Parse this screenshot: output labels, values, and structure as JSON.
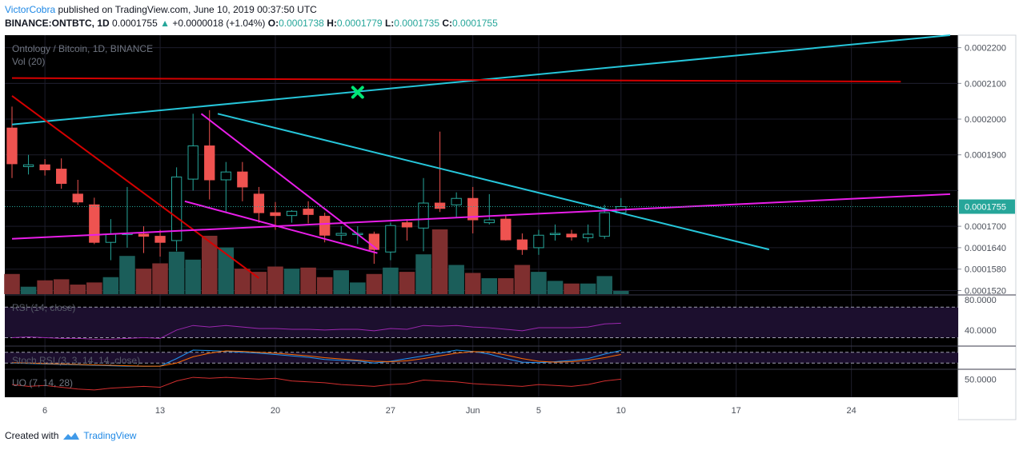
{
  "header": {
    "author": "VictorCobra",
    "published_text": "published on TradingView.com, June 10, 2019 00:37:50 UTC",
    "symbol": "BINANCE:ONTBTC, 1D",
    "last": "0.0001755",
    "change_arrow": "▲",
    "change": "+0.0000018 (+1.04%)",
    "open_label": "O:",
    "open": "0.0001738",
    "high_label": "H:",
    "high": "0.0001779",
    "low_label": "L:",
    "low": "0.0001735",
    "close_label": "C:",
    "close": "0.0001755"
  },
  "footer": {
    "created_with": "Created with",
    "brand": "TradingView",
    "logo_icon": "tradingview-cloud-icon"
  },
  "colors": {
    "background": "#000000",
    "up": "#26a69a",
    "down": "#ef5350",
    "up_volume": "#1b5e5a",
    "down_volume": "#7f2f2f",
    "trend_cyan": "#26c6da",
    "trend_red": "#d50000",
    "trend_magenta": "#e91ee9",
    "marker_green": "#00e676",
    "price_label_bg": "#26a69a",
    "rsi_line": "#9c27b0",
    "stoch_k": "#2196f3",
    "stoch_d": "#ff6d00",
    "uo_line": "#d32f2f"
  },
  "chart_data": {
    "type": "candlestick",
    "title": "Ontology / Bitcoin, 1D, BINANCE",
    "volume_label": "Vol (20)",
    "x_tick_labels": [
      "6",
      "13",
      "20",
      "27",
      "Jun",
      "5",
      "10",
      "17",
      "24"
    ],
    "x_tick_days": [
      2,
      9,
      16,
      23,
      28,
      32,
      37,
      44,
      51
    ],
    "x_range_days": [
      0,
      57
    ],
    "y_range": [
      0.000151,
      0.0002235
    ],
    "y_tick_values": [
      0.000152,
      0.000158,
      0.000164,
      0.00017,
      0.00019,
      0.0002,
      0.00021,
      0.00022
    ],
    "y_tick_labels": [
      "0.0001520",
      "0.0001580",
      "0.0001640",
      "0.0001700",
      "0.0001900",
      "0.0002000",
      "0.0002100",
      "0.0002200"
    ],
    "last_price_label": "0.0001755",
    "candles": [
      {
        "d": 0,
        "o": 0.0001975,
        "h": 0.0002035,
        "l": 0.0001835,
        "c": 0.0001875,
        "v": 0.38
      },
      {
        "d": 1,
        "o": 0.0001867,
        "h": 0.00019,
        "l": 0.0001845,
        "c": 0.0001872,
        "v": 0.14
      },
      {
        "d": 2,
        "o": 0.0001872,
        "h": 0.0001888,
        "l": 0.0001842,
        "c": 0.0001858,
        "v": 0.26
      },
      {
        "d": 3,
        "o": 0.000186,
        "h": 0.000189,
        "l": 0.0001805,
        "c": 0.000182,
        "v": 0.28
      },
      {
        "d": 4,
        "o": 0.000179,
        "h": 0.000183,
        "l": 0.000176,
        "c": 0.0001768,
        "v": 0.18
      },
      {
        "d": 5,
        "o": 0.000176,
        "h": 0.000178,
        "l": 0.000165,
        "c": 0.0001655,
        "v": 0.22
      },
      {
        "d": 6,
        "o": 0.0001655,
        "h": 0.000172,
        "l": 0.0001605,
        "c": 0.0001678,
        "v": 0.32
      },
      {
        "d": 7,
        "o": 0.0001678,
        "h": 0.000181,
        "l": 0.000164,
        "c": 0.000168,
        "v": 0.72
      },
      {
        "d": 8,
        "o": 0.0001678,
        "h": 0.00017,
        "l": 0.0001625,
        "c": 0.0001672,
        "v": 0.48
      },
      {
        "d": 9,
        "o": 0.0001672,
        "h": 0.000169,
        "l": 0.0001615,
        "c": 0.0001655,
        "v": 0.58
      },
      {
        "d": 10,
        "o": 0.000166,
        "h": 0.0001865,
        "l": 0.000163,
        "c": 0.0001838,
        "v": 0.8
      },
      {
        "d": 11,
        "o": 0.0001832,
        "h": 0.0002015,
        "l": 0.00018,
        "c": 0.0001925,
        "v": 0.65
      },
      {
        "d": 12,
        "o": 0.0001925,
        "h": 0.0002025,
        "l": 0.0001775,
        "c": 0.000183,
        "v": 1.1
      },
      {
        "d": 13,
        "o": 0.000183,
        "h": 0.000188,
        "l": 0.000174,
        "c": 0.0001852,
        "v": 0.88
      },
      {
        "d": 14,
        "o": 0.0001852,
        "h": 0.000188,
        "l": 0.000177,
        "c": 0.000181,
        "v": 0.48
      },
      {
        "d": 15,
        "o": 0.000179,
        "h": 0.000181,
        "l": 0.000171,
        "c": 0.0001738,
        "v": 0.42
      },
      {
        "d": 16,
        "o": 0.0001738,
        "h": 0.0001768,
        "l": 0.000169,
        "c": 0.000173,
        "v": 0.52
      },
      {
        "d": 17,
        "o": 0.000173,
        "h": 0.0001745,
        "l": 0.000171,
        "c": 0.0001742,
        "v": 0.48
      },
      {
        "d": 18,
        "o": 0.0001748,
        "h": 0.000177,
        "l": 0.0001708,
        "c": 0.0001733,
        "v": 0.5
      },
      {
        "d": 19,
        "o": 0.0001728,
        "h": 0.0001738,
        "l": 0.0001655,
        "c": 0.0001675,
        "v": 0.32
      },
      {
        "d": 20,
        "o": 0.0001675,
        "h": 0.00017,
        "l": 0.000166,
        "c": 0.000168,
        "v": 0.45
      },
      {
        "d": 21,
        "o": 0.0001678,
        "h": 0.00017,
        "l": 0.000165,
        "c": 0.000168,
        "v": 0.22
      },
      {
        "d": 22,
        "o": 0.0001678,
        "h": 0.0001685,
        "l": 0.0001595,
        "c": 0.0001635,
        "v": 0.38
      },
      {
        "d": 23,
        "o": 0.0001628,
        "h": 0.000171,
        "l": 0.0001605,
        "c": 0.0001702,
        "v": 0.5
      },
      {
        "d": 24,
        "o": 0.000171,
        "h": 0.000172,
        "l": 0.000166,
        "c": 0.0001698,
        "v": 0.42
      },
      {
        "d": 25,
        "o": 0.0001695,
        "h": 0.0001835,
        "l": 0.000163,
        "c": 0.0001765,
        "v": 0.75
      },
      {
        "d": 26,
        "o": 0.0001765,
        "h": 0.0001965,
        "l": 0.000174,
        "c": 0.000175,
        "v": 1.22
      },
      {
        "d": 27,
        "o": 0.000176,
        "h": 0.0001795,
        "l": 0.0001725,
        "c": 0.0001778,
        "v": 0.55
      },
      {
        "d": 28,
        "o": 0.0001778,
        "h": 0.000181,
        "l": 0.000168,
        "c": 0.0001718,
        "v": 0.4
      },
      {
        "d": 29,
        "o": 0.000171,
        "h": 0.000179,
        "l": 0.0001705,
        "c": 0.0001718,
        "v": 0.3
      },
      {
        "d": 30,
        "o": 0.000172,
        "h": 0.000173,
        "l": 0.000166,
        "c": 0.0001662,
        "v": 0.3
      },
      {
        "d": 31,
        "o": 0.0001662,
        "h": 0.000168,
        "l": 0.000162,
        "c": 0.0001635,
        "v": 0.55
      },
      {
        "d": 32,
        "o": 0.000164,
        "h": 0.000169,
        "l": 0.000162,
        "c": 0.0001675,
        "v": 0.42
      },
      {
        "d": 33,
        "o": 0.0001678,
        "h": 0.0001705,
        "l": 0.000166,
        "c": 0.000168,
        "v": 0.25
      },
      {
        "d": 34,
        "o": 0.0001678,
        "h": 0.000169,
        "l": 0.000166,
        "c": 0.000167,
        "v": 0.2
      },
      {
        "d": 35,
        "o": 0.0001668,
        "h": 0.0001705,
        "l": 0.0001655,
        "c": 0.0001678,
        "v": 0.2
      },
      {
        "d": 36,
        "o": 0.0001672,
        "h": 0.000176,
        "l": 0.0001665,
        "c": 0.0001738,
        "v": 0.34
      },
      {
        "d": 37,
        "o": 0.0001738,
        "h": 0.0001779,
        "l": 0.0001735,
        "c": 0.0001755,
        "v": 0.06
      }
    ],
    "trendlines": [
      {
        "name": "upper-channel-cyan",
        "color": "cyan",
        "from": [
          0,
          0.0001985
        ],
        "to": [
          57,
          0.0002235
        ]
      },
      {
        "name": "horizontal-resistance-red",
        "color": "red",
        "from": [
          0,
          0.0002115
        ],
        "to": [
          54,
          0.0002105
        ]
      },
      {
        "name": "descending-red",
        "color": "red",
        "from": [
          0,
          0.0002065
        ],
        "to": [
          15,
          0.0001555
        ]
      },
      {
        "name": "descending-cyan",
        "color": "cyan",
        "from": [
          12.5,
          0.0002015
        ],
        "to": [
          46,
          0.0001635
        ]
      },
      {
        "name": "ascending-magenta",
        "color": "magenta",
        "from": [
          0,
          0.0001665
        ],
        "to": [
          57,
          0.000179
        ]
      },
      {
        "name": "wedge-upper-magenta",
        "color": "magenta",
        "from": [
          11.5,
          0.0002015
        ],
        "to": [
          22.2,
          0.0001635
        ]
      },
      {
        "name": "wedge-lower-magenta",
        "color": "magenta",
        "from": [
          10.5,
          0.000177
        ],
        "to": [
          22.2,
          0.0001625
        ]
      }
    ],
    "marker": {
      "name": "target-x-marker",
      "d": 21,
      "y": 0.0002075
    },
    "indicators": {
      "rsi": {
        "label": "RSI (14, close)",
        "tick_labels": [
          "80.0000",
          "40.0000"
        ],
        "tick_values": [
          80,
          40
        ],
        "range": [
          20,
          85
        ],
        "bands": [
          70,
          30
        ],
        "values": [
          30,
          31,
          30,
          29,
          29,
          28,
          28,
          29,
          30,
          29,
          40,
          46,
          44,
          46,
          44,
          42,
          42,
          41,
          41,
          40,
          41,
          41,
          39,
          42,
          41,
          46,
          45,
          46,
          44,
          43,
          41,
          39,
          43,
          43,
          43,
          44,
          48,
          49
        ]
      },
      "stoch_rsi": {
        "label": "Stoch RSI (3, 3, 14, 14, close)",
        "range": [
          -10,
          110
        ],
        "bands": [
          80,
          20
        ],
        "k": [
          20,
          18,
          15,
          12,
          10,
          8,
          5,
          3,
          2,
          3,
          45,
          92,
          90,
          85,
          80,
          75,
          68,
          60,
          52,
          40,
          35,
          32,
          20,
          30,
          45,
          60,
          75,
          92,
          85,
          70,
          45,
          25,
          22,
          28,
          35,
          45,
          70,
          90
        ],
        "d": [
          22,
          20,
          17,
          15,
          12,
          10,
          8,
          5,
          3,
          3,
          20,
          55,
          75,
          88,
          85,
          80,
          75,
          68,
          60,
          50,
          43,
          36,
          30,
          28,
          33,
          45,
          60,
          75,
          84,
          82,
          65,
          45,
          30,
          25,
          28,
          36,
          50,
          68
        ]
      },
      "uo": {
        "label": "UO (7, 14, 28)",
        "tick_labels": [
          "50.0000"
        ],
        "tick_values": [
          50
        ],
        "range": [
          30,
          60
        ],
        "values": [
          44,
          42,
          43,
          41,
          39,
          38,
          40,
          41,
          42,
          41,
          48,
          52,
          51,
          52,
          51,
          50,
          51,
          48,
          47,
          46,
          44,
          43,
          42,
          44,
          45,
          49,
          48,
          47,
          45,
          44,
          43,
          42,
          44,
          43,
          42,
          44,
          48,
          50
        ]
      }
    }
  }
}
